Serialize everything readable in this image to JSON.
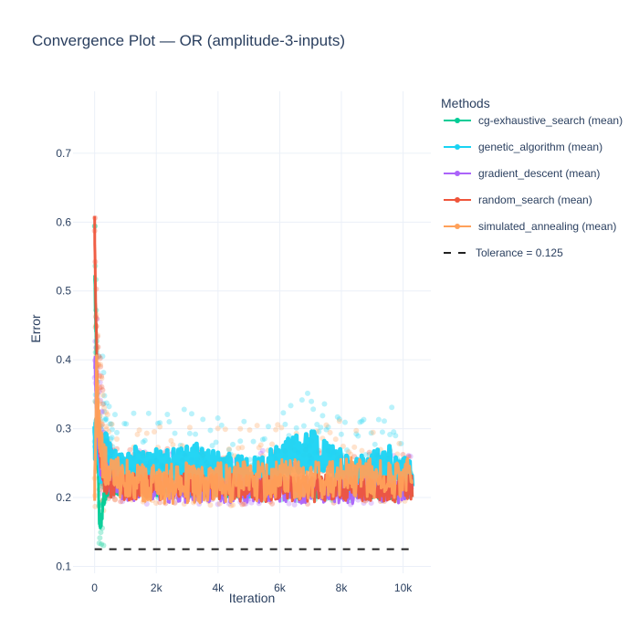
{
  "chart_data": {
    "type": "line",
    "title": "Convergence Plot — OR (amplitude-3-inputs)",
    "xlabel": "Iteration",
    "ylabel": "Error",
    "xlim": [
      -700,
      10900
    ],
    "ylim": [
      0.09,
      0.79
    ],
    "x_ticks": [
      0,
      2000,
      4000,
      6000,
      8000,
      10000
    ],
    "x_tick_labels": [
      "0",
      "2k",
      "4k",
      "6k",
      "8k",
      "10k"
    ],
    "y_ticks": [
      0.1,
      0.2,
      0.3,
      0.4,
      0.5,
      0.6,
      0.7
    ],
    "y_tick_labels": [
      "0.1",
      "0.2",
      "0.3",
      "0.4",
      "0.5",
      "0.6",
      "0.7"
    ],
    "grid": true,
    "legend_title": "Methods",
    "legend_position": "right",
    "series": [
      {
        "name": "cg-exhaustive_search (mean)",
        "color": "#00cc96",
        "x": [
          0,
          50,
          100,
          150,
          200,
          300,
          500,
          800,
          1200,
          2000,
          3000,
          4000,
          5000,
          6000,
          7000,
          8000,
          9000,
          10000,
          10300
        ],
        "y": [
          0.52,
          0.42,
          0.26,
          0.17,
          0.16,
          0.2,
          0.214,
          0.215,
          0.213,
          0.212,
          0.211,
          0.211,
          0.21,
          0.21,
          0.21,
          0.21,
          0.21,
          0.21,
          0.21
        ]
      },
      {
        "name": "genetic_algorithm (mean)",
        "color": "#19d3f3",
        "x": [
          0,
          100,
          200,
          300,
          500,
          800,
          1200,
          2000,
          3000,
          3500,
          4000,
          5000,
          5500,
          6000,
          6500,
          7000,
          7500,
          8000,
          8500,
          9000,
          9500,
          10000,
          10300
        ],
        "y": [
          0.28,
          0.29,
          0.25,
          0.27,
          0.25,
          0.24,
          0.245,
          0.24,
          0.245,
          0.25,
          0.24,
          0.23,
          0.24,
          0.25,
          0.26,
          0.27,
          0.25,
          0.24,
          0.23,
          0.24,
          0.25,
          0.24,
          0.23
        ]
      },
      {
        "name": "gradient_descent (mean)",
        "color": "#ab63fa",
        "x": [
          0,
          100,
          200,
          500,
          1000,
          2000,
          4000,
          6000,
          8000,
          10000,
          10300
        ],
        "y": [
          0.4,
          0.3,
          0.25,
          0.22,
          0.215,
          0.213,
          0.212,
          0.212,
          0.211,
          0.211,
          0.211
        ]
      },
      {
        "name": "random_search (mean)",
        "color": "#ef553b",
        "x": [
          0,
          30,
          60,
          100,
          200,
          300,
          500,
          800,
          1000,
          2000,
          4000,
          6000,
          8000,
          10000,
          10300
        ],
        "y": [
          0.6,
          0.5,
          0.42,
          0.32,
          0.26,
          0.23,
          0.22,
          0.218,
          0.216,
          0.215,
          0.214,
          0.214,
          0.213,
          0.213,
          0.213
        ]
      },
      {
        "name": "simulated_annealing (mean)",
        "color": "#ffa15a",
        "x": [
          0,
          30,
          60,
          100,
          150,
          200,
          300,
          500,
          1000,
          2000,
          4000,
          6000,
          8000,
          10000,
          10300
        ],
        "y": [
          0.2,
          0.28,
          0.38,
          0.33,
          0.3,
          0.27,
          0.25,
          0.235,
          0.225,
          0.22,
          0.222,
          0.225,
          0.23,
          0.228,
          0.226
        ]
      }
    ],
    "reference_lines": [
      {
        "name": "Tolerance = 0.125",
        "y": 0.125,
        "style": "dashed",
        "color": "#222222",
        "x_range": [
          0,
          10300
        ]
      }
    ]
  }
}
